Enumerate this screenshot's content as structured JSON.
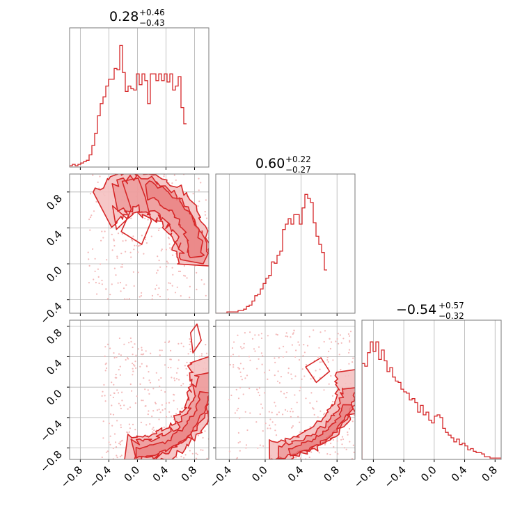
{
  "colors": {
    "main": "#d62728",
    "fill_light": "#f5c1c1",
    "fill_mid": "#ea8484",
    "grid": "#b0b0b0",
    "scatter": "#f3b9b9"
  },
  "titles": [
    {
      "value": "0.28",
      "plus": "+0.46",
      "minus": "−0.43"
    },
    {
      "value": "0.60",
      "plus": "+0.22",
      "minus": "−0.27"
    },
    {
      "value": "−0.54",
      "plus": "+0.57",
      "minus": "−0.32"
    }
  ],
  "chart_data": {
    "type": "corner",
    "parameters": 3,
    "ranges": [
      [
        -0.95,
        1.0
      ],
      [
        -0.55,
        1.0
      ],
      [
        -0.95,
        0.88
      ]
    ],
    "grid": true,
    "ticks": {
      "p0_x": [
        "−0.8",
        "−0.4",
        "0.0",
        "0.4",
        "0.8"
      ],
      "p1_x": [
        "−0.4",
        "0.0",
        "0.4",
        "0.8"
      ],
      "p2_x": [
        "−0.8",
        "−0.4",
        "0.0",
        "0.4",
        "0.8"
      ],
      "p1_y": [
        "−0.4",
        "0.0",
        "0.4",
        "0.8"
      ],
      "p2_y": [
        "−0.8",
        "−0.4",
        "0.0",
        "0.4",
        "0.8"
      ]
    },
    "tick_values": {
      "p0": [
        -0.8,
        -0.4,
        0.0,
        0.4,
        0.8
      ],
      "p1": [
        -0.4,
        0.0,
        0.4,
        0.8
      ],
      "p2": [
        -0.8,
        -0.4,
        0.0,
        0.4,
        0.8
      ]
    },
    "histograms": [
      {
        "param": 0,
        "bin_start": -0.95,
        "bin_width": 0.039,
        "counts": [
          0.01,
          0.02,
          0.01,
          0.02,
          0.03,
          0.04,
          0.05,
          0.09,
          0.16,
          0.25,
          0.38,
          0.47,
          0.52,
          0.6,
          0.65,
          0.65,
          0.73,
          0.72,
          0.9,
          0.7,
          0.56,
          0.6,
          0.58,
          0.57,
          0.69,
          0.61,
          0.69,
          0.64,
          0.47,
          0.69,
          0.69,
          0.64,
          0.69,
          0.64,
          0.69,
          0.63,
          0.69,
          0.57,
          0.6,
          0.67,
          0.44,
          0.32
        ]
      },
      {
        "param": 1,
        "bin_start": -0.55,
        "bin_width": 0.031,
        "counts": [
          0.0,
          0.0,
          0.0,
          0.0,
          0.01,
          0.01,
          0.01,
          0.01,
          0.02,
          0.02,
          0.03,
          0.05,
          0.06,
          0.09,
          0.13,
          0.14,
          0.18,
          0.22,
          0.26,
          0.28,
          0.38,
          0.37,
          0.43,
          0.46,
          0.62,
          0.66,
          0.7,
          0.66,
          0.73,
          0.73,
          0.66,
          0.78,
          0.88,
          0.85,
          0.82,
          0.67,
          0.57,
          0.51,
          0.45,
          0.32
        ]
      },
      {
        "param": 2,
        "bin_start": -0.95,
        "bin_width": 0.0366,
        "counts": [
          0.71,
          0.69,
          0.79,
          0.87,
          0.8,
          0.87,
          0.74,
          0.81,
          0.73,
          0.65,
          0.68,
          0.61,
          0.58,
          0.57,
          0.52,
          0.5,
          0.49,
          0.44,
          0.45,
          0.42,
          0.35,
          0.4,
          0.33,
          0.35,
          0.29,
          0.27,
          0.32,
          0.33,
          0.31,
          0.23,
          0.2,
          0.18,
          0.16,
          0.13,
          0.15,
          0.11,
          0.12,
          0.1,
          0.07,
          0.08,
          0.06,
          0.05,
          0.05,
          0.04,
          0.02,
          0.02,
          0.01,
          0.01,
          0.01,
          0.01
        ]
      }
    ]
  }
}
